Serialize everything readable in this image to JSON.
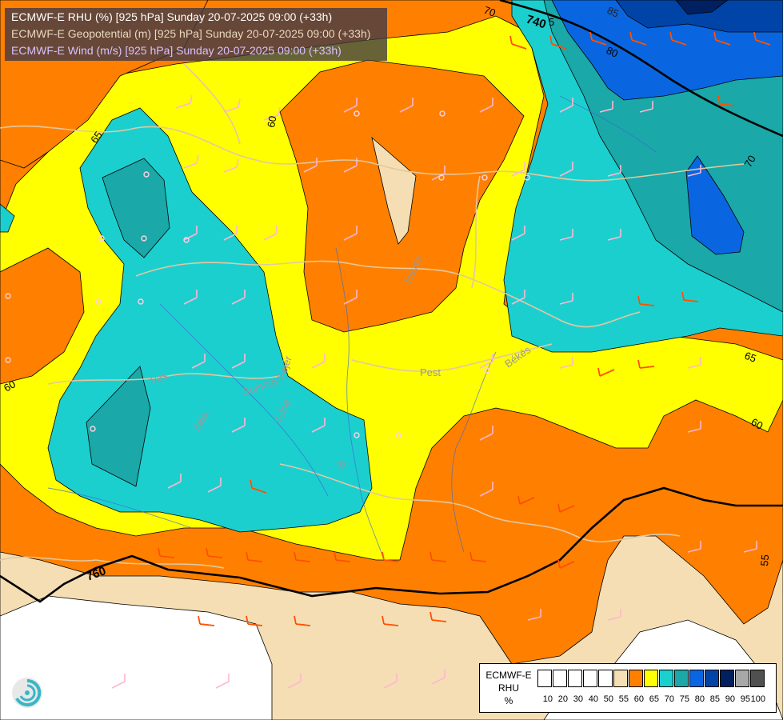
{
  "titles": {
    "line1": "ECMWF-E RHU (%) [925 hPa] Sunday 20-07-2025 09:00 (+33h)",
    "line2": "ECMWF-E Geopotential (m) [925 hPa] Sunday 20-07-2025 09:00 (+33h)",
    "line3": "ECMWF-E Wind (m/s) [925 hPa] Sunday 20-07-2025 09:00 (+33h)"
  },
  "colors": {
    "line1": "#ffffff",
    "line2": "#e8d8c0",
    "line3": "#d9c2ff"
  },
  "contour_labels": {
    "c740": "740",
    "c760": "760",
    "c85": "85",
    "c80": "80",
    "c70a": "70",
    "c70b": "70",
    "c65a": "65",
    "c65b": "65",
    "c60a": "60",
    "c60b": "60",
    "c60c": "60",
    "c55": "55",
    "c5x": "5"
  },
  "place_labels": {
    "pest": "Pest",
    "bekes": "Békés",
    "heves": "Heves",
    "vas": "Vas",
    "zala": "Zala",
    "somogy": "Somogy",
    "tolna": "Tolna",
    "feher": "Fejér",
    "baranya": "B"
  },
  "legend": {
    "title_line1": "ECMWF-E",
    "title_line2": "RHU",
    "title_line3": "%",
    "levels": [
      "10",
      "20",
      "30",
      "40",
      "50",
      "55",
      "60",
      "65",
      "70",
      "75",
      "80",
      "85",
      "90",
      "95",
      "100"
    ],
    "colors": [
      "#ffffff",
      "#ffffff",
      "#ffffff",
      "#ffffff",
      "#ffffff",
      "#f5deb3",
      "#ff8000",
      "#ffff00",
      "#1ccfcf",
      "#1aa8a8",
      "#0a66e0",
      "#0044a8",
      "#002060",
      "#a8a8a8",
      "#505050"
    ]
  }
}
